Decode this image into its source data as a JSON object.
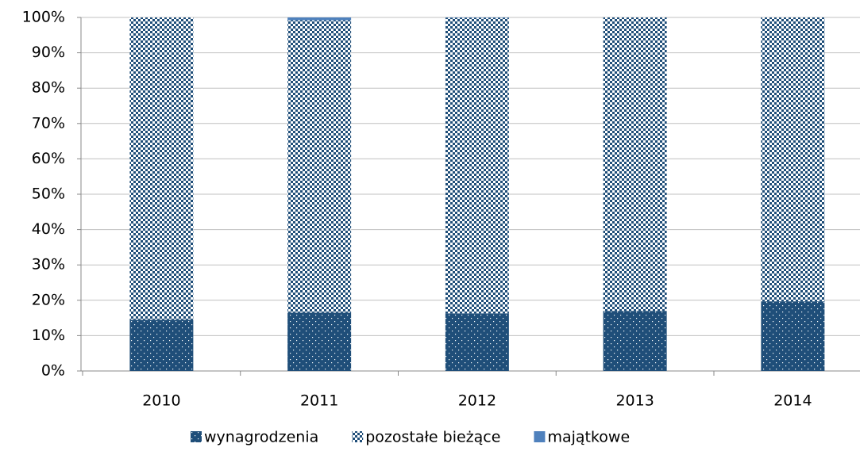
{
  "chart_data": {
    "type": "stacked_bar_percent",
    "categories": [
      "2010",
      "2011",
      "2012",
      "2013",
      "2014"
    ],
    "series": [
      {
        "name": "wynagrodzenia",
        "color": "#1f4e79",
        "pattern": "dots",
        "values": [
          14.5,
          16.5,
          16.3,
          17,
          19.7
        ]
      },
      {
        "name": "pozostałe bieżące",
        "color": "#1f4e79",
        "pattern": "checker",
        "values": [
          85.5,
          82.7,
          83.6,
          83,
          80.3
        ]
      },
      {
        "name": "majątkowe",
        "color": "#4f81bd",
        "pattern": "solid",
        "values": [
          0,
          0.8,
          0.1,
          0,
          0
        ]
      }
    ],
    "ylim": [
      0,
      100
    ],
    "yticks": [
      {
        "value": 0,
        "label": "0%"
      },
      {
        "value": 10,
        "label": "10%"
      },
      {
        "value": 20,
        "label": "20%"
      },
      {
        "value": 30,
        "label": "30%"
      },
      {
        "value": 40,
        "label": "40%"
      },
      {
        "value": 50,
        "label": "50%"
      },
      {
        "value": 60,
        "label": "60%"
      },
      {
        "value": 70,
        "label": "70%"
      },
      {
        "value": 80,
        "label": "80%"
      },
      {
        "value": 90,
        "label": "90%"
      },
      {
        "value": 100,
        "label": "100%"
      }
    ],
    "grid": true,
    "legend": "bottom"
  }
}
